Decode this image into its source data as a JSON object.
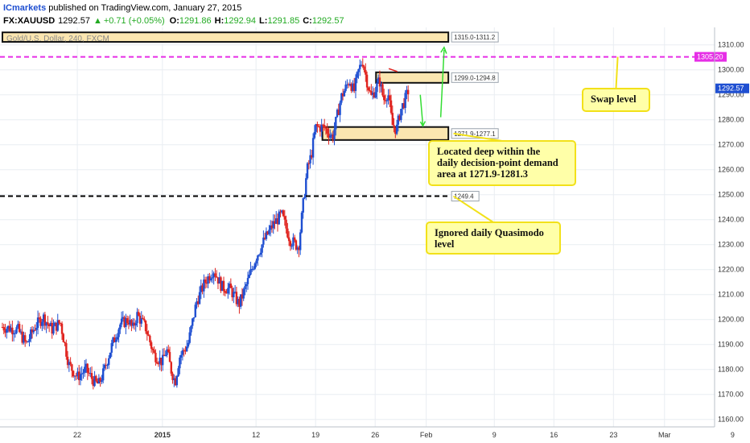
{
  "header": {
    "brand": "ICmarkets",
    "published": " published on TradingView.com, January 27, 2015",
    "symbol": "FX:XAUUSD",
    "last": "1292.57",
    "change": "+0.71 (+0.05%)",
    "o_label": "O:",
    "o_value": "1291.86",
    "h_label": "H:",
    "h_value": "1292.94",
    "l_label": "L:",
    "l_value": "1291.85",
    "c_label": "C:",
    "c_value": "1292.57",
    "watermark": "Gold/U.S. Dollar, 240, FXCM"
  },
  "colors": {
    "up_candle": "#1f4fd1",
    "down_candle": "#e0241f",
    "zone_fill": "#fbe6b0",
    "zone_border": "#111111",
    "swap_line": "#e62ee6",
    "note_fill": "#ffffa8",
    "note_border": "#f2e11a",
    "arrow_green": "#33dd33",
    "arrow_red": "#e0241f",
    "last_price_tag": "#1f4fd1"
  },
  "chart_data": {
    "type": "candlestick",
    "title": "Gold/U.S. Dollar, 240, FXCM",
    "ylim": [
      1157,
      1317
    ],
    "y_ticks": [
      1160,
      1170,
      1180,
      1190,
      1200,
      1210,
      1220,
      1230,
      1240,
      1250,
      1260,
      1270,
      1280,
      1290,
      1300,
      1310
    ],
    "y_tick_labels": [
      "1160.00",
      "1170.00",
      "1180.00",
      "1190.00",
      "1200.00",
      "1210.00",
      "1220.00",
      "1230.00",
      "1240.00",
      "1250.00",
      "1260.00",
      "1270.00",
      "1280.00",
      "1290.00",
      "1300.00",
      "1310.00"
    ],
    "x_range_days": [
      -18.8,
      64.6
    ],
    "x_ticks": [
      {
        "label": "22",
        "day": -10
      },
      {
        "label": "2015",
        "day": 0
      },
      {
        "label": "12",
        "day": 11
      },
      {
        "label": "19",
        "day": 18
      },
      {
        "label": "26",
        "day": 25
      },
      {
        "label": "Feb",
        "day": 31
      },
      {
        "label": "9",
        "day": 39
      },
      {
        "label": "16",
        "day": 46
      },
      {
        "label": "23",
        "day": 53
      },
      {
        "label": "Mar",
        "day": 59
      },
      {
        "label": "9",
        "day": 67
      }
    ],
    "price_path": [
      [
        -18.8,
        1197
      ],
      [
        -17.0,
        1196
      ],
      [
        -16.0,
        1190
      ],
      [
        -15.0,
        1197
      ],
      [
        -14.0,
        1201
      ],
      [
        -13.0,
        1196
      ],
      [
        -12.0,
        1199
      ],
      [
        -11.0,
        1182
      ],
      [
        -10.0,
        1177
      ],
      [
        -9.0,
        1180
      ],
      [
        -8.0,
        1175
      ],
      [
        -7.5,
        1174
      ],
      [
        -7.0,
        1178
      ],
      [
        -6.0,
        1189
      ],
      [
        -5.0,
        1198
      ],
      [
        -4.0,
        1200
      ],
      [
        -3.5,
        1196
      ],
      [
        -3.0,
        1202
      ],
      [
        -2.0,
        1197
      ],
      [
        -1.0,
        1186
      ],
      [
        0.0,
        1183
      ],
      [
        0.5,
        1188
      ],
      [
        1.0,
        1180
      ],
      [
        1.5,
        1175
      ],
      [
        2.0,
        1185
      ],
      [
        3.0,
        1190
      ],
      [
        4.0,
        1207
      ],
      [
        5.0,
        1215
      ],
      [
        6.0,
        1220
      ],
      [
        7.0,
        1213
      ],
      [
        8.0,
        1212
      ],
      [
        9.0,
        1206
      ],
      [
        10.0,
        1215
      ],
      [
        11.0,
        1225
      ],
      [
        12.0,
        1232
      ],
      [
        13.0,
        1238
      ],
      [
        14.0,
        1242
      ],
      [
        15.0,
        1232
      ],
      [
        16.0,
        1229
      ],
      [
        16.5,
        1245
      ],
      [
        17.0,
        1260
      ],
      [
        17.5,
        1266
      ],
      [
        18.0,
        1277
      ],
      [
        19.0,
        1277
      ],
      [
        20.0,
        1273
      ],
      [
        21.0,
        1289
      ],
      [
        22.0,
        1296
      ],
      [
        22.5,
        1291
      ],
      [
        23.0,
        1299
      ],
      [
        23.5,
        1304
      ],
      [
        24.0,
        1296
      ],
      [
        24.5,
        1289
      ],
      [
        25.0,
        1292
      ],
      [
        25.5,
        1296
      ],
      [
        26.0,
        1288
      ],
      [
        26.5,
        1291
      ],
      [
        27.0,
        1278
      ],
      [
        27.5,
        1276
      ],
      [
        28.0,
        1284
      ],
      [
        28.5,
        1288
      ],
      [
        29.0,
        1292.57
      ]
    ],
    "last_price": {
      "value": 1292.57,
      "label": "1292.57"
    },
    "levels": [
      {
        "name": "Swap level line",
        "value": 1305.2,
        "label": "1305.20",
        "style": "dashed",
        "color": "#e62ee6"
      },
      {
        "name": "Quasimodo line",
        "value": 1249.4,
        "label": "1249.4",
        "style": "dashed",
        "color": "#000000"
      }
    ],
    "zones": [
      {
        "label": "1315.0-1311.2",
        "top": 1315.0,
        "bottom": 1311.2,
        "x_start": -18.8,
        "x_end": 33.6
      },
      {
        "label": "1299.0-1294.8",
        "top": 1299.0,
        "bottom": 1294.8,
        "x_start": 25.1,
        "x_end": 33.6
      },
      {
        "label": "1271.9-1277.1",
        "top": 1277.1,
        "bottom": 1271.9,
        "x_start": 18.8,
        "x_end": 33.6
      }
    ],
    "annotations": [
      {
        "name": "swap-level-note",
        "text": [
          "Swap level"
        ]
      },
      {
        "name": "demand-area-note",
        "text": [
          "Located deep within the",
          "daily decision-point demand",
          "area at 1271.9-1281.3"
        ]
      },
      {
        "name": "quasimodo-note",
        "text": [
          "Ignored daily Quasimodo",
          "level"
        ]
      }
    ]
  }
}
